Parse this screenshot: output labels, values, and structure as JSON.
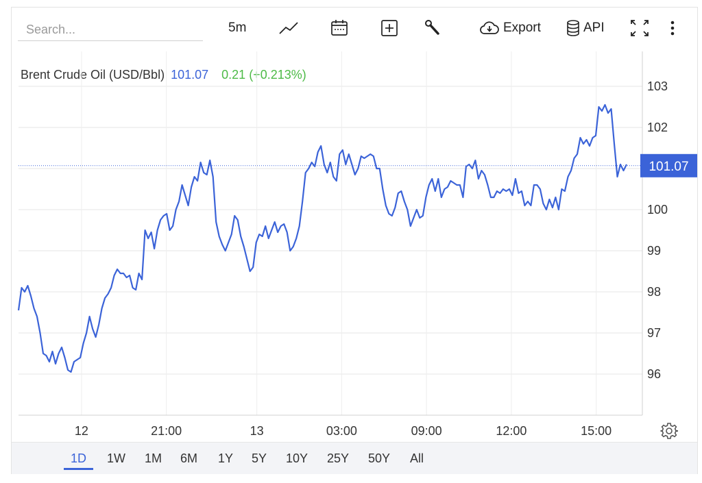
{
  "toolbar": {
    "search_placeholder": "Search...",
    "interval_label": "5m",
    "export_label": "Export",
    "api_label": "API"
  },
  "legend": {
    "name": "Brent Crude Oil (USD/Bbl)",
    "value": "101.07",
    "change": "0.21 (+0.213%)"
  },
  "colors": {
    "line": "#3b63d8",
    "change_positive": "#4cba46",
    "grid": "#e6e6e6",
    "last_price_badge": "#3b63d8"
  },
  "range_buttons": [
    "1D",
    "1W",
    "1M",
    "6M",
    "1Y",
    "5Y",
    "10Y",
    "25Y",
    "50Y",
    "All"
  ],
  "active_range": "1D",
  "chart_data": {
    "type": "line",
    "title": "Brent Crude Oil (USD/Bbl)",
    "ylim": [
      95,
      104
    ],
    "y_ticks": [
      96,
      97,
      98,
      99,
      100,
      101,
      102,
      103
    ],
    "x_ticks": [
      {
        "label": "12",
        "t": 0.101
      },
      {
        "label": "21:00",
        "t": 0.237
      },
      {
        "label": "13",
        "t": 0.382
      },
      {
        "label": "03:00",
        "t": 0.518
      },
      {
        "label": "09:00",
        "t": 0.654
      },
      {
        "label": "12:00",
        "t": 0.79
      },
      {
        "label": "15:00",
        "t": 0.926
      }
    ],
    "last_price": 101.07,
    "last_price_label": "101.07",
    "grid": true,
    "series": [
      {
        "values": [
          97.55,
          98.1,
          98.0,
          98.15,
          97.9,
          97.6,
          97.4,
          97.0,
          96.5,
          96.45,
          96.3,
          96.55,
          96.25,
          96.5,
          96.65,
          96.4,
          96.1,
          96.05,
          96.3,
          96.35,
          96.4,
          96.75,
          97.0,
          97.4,
          97.1,
          96.9,
          97.2,
          97.6,
          97.85,
          97.95,
          98.1,
          98.4,
          98.55,
          98.45,
          98.45,
          98.35,
          98.4,
          98.1,
          98.05,
          98.45,
          98.3,
          99.5,
          99.3,
          99.45,
          99.05,
          99.5,
          99.75,
          99.85,
          99.9,
          99.5,
          99.6,
          100.0,
          100.2,
          100.6,
          100.35,
          100.1,
          100.55,
          100.8,
          100.7,
          101.15,
          100.9,
          100.85,
          101.2,
          100.8,
          99.7,
          99.35,
          99.15,
          99.0,
          99.2,
          99.4,
          99.85,
          99.75,
          99.35,
          99.1,
          98.8,
          98.5,
          98.6,
          99.2,
          99.4,
          99.35,
          99.6,
          99.3,
          99.5,
          99.7,
          99.45,
          99.6,
          99.65,
          99.45,
          99.0,
          99.1,
          99.3,
          99.6,
          100.2,
          100.9,
          101.0,
          101.15,
          101.05,
          101.4,
          101.55,
          101.1,
          100.9,
          101.15,
          100.8,
          100.7,
          101.35,
          101.45,
          101.1,
          101.35,
          101.1,
          100.85,
          101.0,
          101.3,
          101.25,
          101.3,
          101.35,
          101.3,
          101.0,
          101.0,
          100.5,
          100.1,
          99.9,
          99.85,
          100.05,
          100.4,
          100.45,
          100.2,
          100.0,
          99.6,
          99.8,
          100.0,
          99.8,
          99.85,
          100.3,
          100.6,
          100.75,
          100.45,
          100.75,
          100.3,
          100.5,
          100.55,
          100.7,
          100.65,
          100.6,
          100.6,
          100.3,
          101.05,
          101.1,
          101.0,
          101.2,
          100.75,
          100.95,
          100.85,
          100.6,
          100.3,
          100.3,
          100.45,
          100.4,
          100.5,
          100.45,
          100.5,
          100.35,
          100.75,
          100.4,
          100.45,
          100.1,
          100.2,
          100.1,
          100.6,
          100.6,
          100.5,
          100.15,
          100.0,
          100.25,
          100.05,
          100.3,
          100.0,
          100.5,
          100.45,
          100.8,
          100.95,
          101.25,
          101.35,
          101.75,
          101.6,
          101.7,
          101.55,
          101.75,
          101.8,
          102.5,
          102.4,
          102.55,
          102.35,
          102.45,
          101.6,
          100.8,
          101.1,
          100.95,
          101.1
        ]
      }
    ]
  }
}
